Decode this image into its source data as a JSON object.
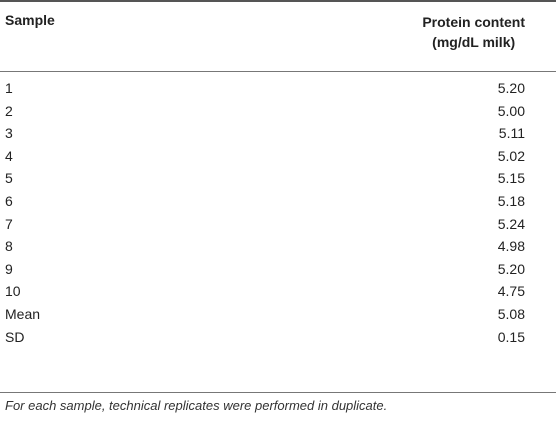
{
  "table": {
    "headers": {
      "sample": "Sample",
      "protein_line1": "Protein content",
      "protein_line2": "(mg/dL milk)"
    },
    "rows": [
      {
        "sample": "1",
        "value": "5.20"
      },
      {
        "sample": "2",
        "value": "5.00"
      },
      {
        "sample": "3",
        "value": "5.11"
      },
      {
        "sample": "4",
        "value": "5.02"
      },
      {
        "sample": "5",
        "value": "5.15"
      },
      {
        "sample": "6",
        "value": "5.18"
      },
      {
        "sample": "7",
        "value": "5.24"
      },
      {
        "sample": "8",
        "value": "4.98"
      },
      {
        "sample": "9",
        "value": "5.20"
      },
      {
        "sample": "10",
        "value": "4.75"
      },
      {
        "sample": "Mean",
        "value": "5.08"
      },
      {
        "sample": "SD",
        "value": "0.15"
      }
    ],
    "footnote": "For each sample, technical replicates were performed in duplicate."
  }
}
